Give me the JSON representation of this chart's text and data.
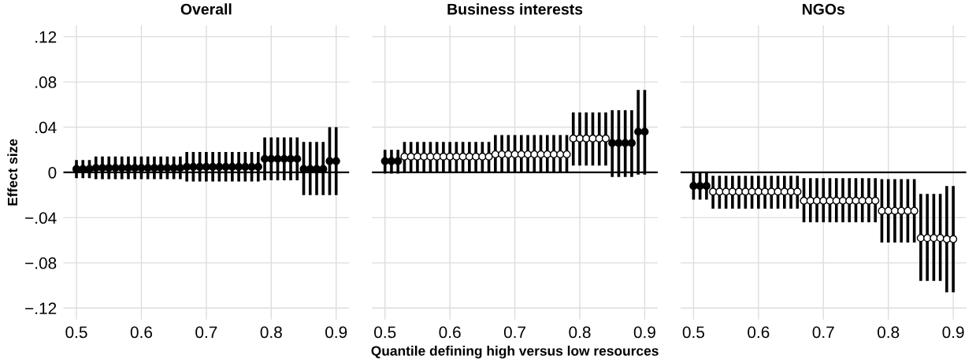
{
  "chart_data": [
    {
      "type": "scatter",
      "title": "Overall",
      "ylabel": "Effect size",
      "marker": "circle",
      "grid": true,
      "legend": false,
      "xlim": [
        0.48,
        0.92
      ],
      "xticks": [
        0.5,
        0.6,
        0.7,
        0.8,
        0.9
      ],
      "ylim": [
        -0.13,
        0.13
      ],
      "yticks": [
        {
          "value": -0.12,
          "label": "−.12"
        },
        {
          "value": -0.08,
          "label": "−.08"
        },
        {
          "value": -0.04,
          "label": "−.04"
        },
        0,
        {
          "value": 0.04,
          "label": ".04"
        },
        {
          "value": 0.08,
          "label": ".08"
        },
        {
          "value": 0.12,
          "label": ".12"
        }
      ],
      "ref_lines": [
        {
          "axis": "y",
          "value": 0,
          "color": "#000000"
        }
      ],
      "series": [
        {
          "color": "#000000",
          "x": [
            0.5,
            0.51,
            0.52,
            0.53,
            0.54,
            0.55,
            0.56,
            0.57,
            0.58,
            0.59,
            0.6,
            0.61,
            0.62,
            0.63,
            0.64,
            0.65,
            0.66,
            0.67,
            0.68,
            0.69,
            0.7,
            0.71,
            0.72,
            0.73,
            0.74,
            0.75,
            0.76,
            0.77,
            0.78,
            0.79,
            0.8,
            0.81,
            0.82,
            0.83,
            0.84,
            0.85,
            0.86,
            0.87,
            0.88,
            0.89,
            0.9
          ],
          "values": [
            0.003,
            0.003,
            0.003,
            0.004,
            0.004,
            0.004,
            0.004,
            0.004,
            0.004,
            0.004,
            0.004,
            0.004,
            0.004,
            0.004,
            0.004,
            0.004,
            0.004,
            0.005,
            0.005,
            0.005,
            0.005,
            0.005,
            0.005,
            0.005,
            0.005,
            0.005,
            0.005,
            0.005,
            0.005,
            0.012,
            0.012,
            0.012,
            0.012,
            0.012,
            0.012,
            0.003,
            0.003,
            0.003,
            0.003,
            0.01,
            0.01
          ],
          "errors": [
            [
              -0.005,
              0.011
            ],
            [
              -0.005,
              0.011
            ],
            [
              -0.005,
              0.011
            ],
            [
              -0.006,
              0.014
            ],
            [
              -0.006,
              0.014
            ],
            [
              -0.006,
              0.014
            ],
            [
              -0.006,
              0.014
            ],
            [
              -0.006,
              0.014
            ],
            [
              -0.006,
              0.014
            ],
            [
              -0.006,
              0.014
            ],
            [
              -0.006,
              0.014
            ],
            [
              -0.006,
              0.014
            ],
            [
              -0.006,
              0.014
            ],
            [
              -0.006,
              0.014
            ],
            [
              -0.006,
              0.014
            ],
            [
              -0.006,
              0.014
            ],
            [
              -0.006,
              0.014
            ],
            [
              -0.008,
              0.018
            ],
            [
              -0.008,
              0.018
            ],
            [
              -0.008,
              0.018
            ],
            [
              -0.008,
              0.018
            ],
            [
              -0.008,
              0.018
            ],
            [
              -0.008,
              0.018
            ],
            [
              -0.008,
              0.018
            ],
            [
              -0.008,
              0.018
            ],
            [
              -0.008,
              0.018
            ],
            [
              -0.008,
              0.018
            ],
            [
              -0.008,
              0.018
            ],
            [
              -0.008,
              0.018
            ],
            [
              -0.007,
              0.031
            ],
            [
              -0.007,
              0.031
            ],
            [
              -0.007,
              0.031
            ],
            [
              -0.007,
              0.031
            ],
            [
              -0.007,
              0.031
            ],
            [
              -0.007,
              0.031
            ],
            [
              -0.02,
              0.027
            ],
            [
              -0.02,
              0.027
            ],
            [
              -0.02,
              0.027
            ],
            [
              -0.02,
              0.027
            ],
            [
              -0.02,
              0.04
            ],
            [
              -0.02,
              0.04
            ]
          ]
        }
      ]
    },
    {
      "type": "scatter",
      "title": "Business interests",
      "xlabel": "Quantile defining high versus low resources",
      "marker": "circle",
      "grid": true,
      "legend": false,
      "tick_labels": "x",
      "xlim": [
        0.48,
        0.92
      ],
      "xticks": [
        0.5,
        0.6,
        0.7,
        0.8,
        0.9
      ],
      "ylim": [
        -0.13,
        0.13
      ],
      "yticks": [
        {
          "value": -0.12,
          "label": null
        },
        {
          "value": -0.08,
          "label": null
        },
        {
          "value": -0.04,
          "label": null
        },
        {
          "value": 0,
          "label": null
        },
        {
          "value": 0.04,
          "label": null
        },
        {
          "value": 0.08,
          "label": null
        },
        {
          "value": 0.12,
          "label": null
        }
      ],
      "ref_lines": [
        {
          "axis": "y",
          "value": 0,
          "color": "#000000"
        }
      ],
      "series": [
        {
          "color": "#000000",
          "x": [
            0.5,
            0.51,
            0.52,
            0.85,
            0.86,
            0.87,
            0.88,
            0.89,
            0.9
          ],
          "values": [
            0.01,
            0.01,
            0.01,
            0.026,
            0.026,
            0.026,
            0.026,
            0.036,
            0.036
          ],
          "errors": [
            [
              -0.001,
              0.02
            ],
            [
              -0.001,
              0.02
            ],
            [
              -0.001,
              0.02
            ],
            [
              -0.004,
              0.055
            ],
            [
              -0.004,
              0.055
            ],
            [
              -0.004,
              0.055
            ],
            [
              -0.004,
              0.055
            ],
            [
              -0.002,
              0.073
            ],
            [
              -0.002,
              0.073
            ]
          ]
        },
        {
          "color": "#ffffff",
          "x": [
            0.53,
            0.54,
            0.55,
            0.56,
            0.57,
            0.58,
            0.59,
            0.6,
            0.61,
            0.62,
            0.63,
            0.64,
            0.65,
            0.66,
            0.67,
            0.68,
            0.69,
            0.7,
            0.71,
            0.72,
            0.73,
            0.74,
            0.75,
            0.76,
            0.77,
            0.78,
            0.79,
            0.8,
            0.81,
            0.82,
            0.83,
            0.84
          ],
          "values": [
            0.014,
            0.014,
            0.014,
            0.014,
            0.014,
            0.014,
            0.014,
            0.014,
            0.014,
            0.014,
            0.014,
            0.014,
            0.014,
            0.014,
            0.016,
            0.016,
            0.016,
            0.016,
            0.016,
            0.016,
            0.016,
            0.016,
            0.016,
            0.016,
            0.016,
            0.016,
            0.03,
            0.03,
            0.03,
            0.03,
            0.03,
            0.03
          ],
          "errors": [
            [
              0.0,
              0.027
            ],
            [
              0.0,
              0.027
            ],
            [
              0.0,
              0.027
            ],
            [
              0.0,
              0.027
            ],
            [
              0.0,
              0.027
            ],
            [
              0.0,
              0.027
            ],
            [
              0.0,
              0.027
            ],
            [
              0.0,
              0.027
            ],
            [
              0.0,
              0.027
            ],
            [
              0.0,
              0.027
            ],
            [
              0.0,
              0.027
            ],
            [
              0.0,
              0.027
            ],
            [
              0.0,
              0.027
            ],
            [
              0.0,
              0.027
            ],
            [
              0.0,
              0.033
            ],
            [
              0.0,
              0.033
            ],
            [
              0.0,
              0.033
            ],
            [
              0.0,
              0.033
            ],
            [
              0.0,
              0.033
            ],
            [
              0.0,
              0.033
            ],
            [
              0.0,
              0.033
            ],
            [
              0.0,
              0.033
            ],
            [
              0.0,
              0.033
            ],
            [
              0.0,
              0.033
            ],
            [
              0.0,
              0.033
            ],
            [
              0.0,
              0.033
            ],
            [
              0.006,
              0.053
            ],
            [
              0.006,
              0.053
            ],
            [
              0.006,
              0.053
            ],
            [
              0.006,
              0.053
            ],
            [
              0.006,
              0.053
            ],
            [
              0.006,
              0.053
            ]
          ]
        }
      ]
    },
    {
      "type": "scatter",
      "title": "NGOs",
      "marker": "circle",
      "grid": true,
      "legend": false,
      "tick_labels": "x",
      "xlim": [
        0.48,
        0.92
      ],
      "xticks": [
        0.5,
        0.6,
        0.7,
        0.8,
        0.9
      ],
      "ylim": [
        -0.13,
        0.13
      ],
      "yticks": [
        {
          "value": -0.12,
          "label": null
        },
        {
          "value": -0.08,
          "label": null
        },
        {
          "value": -0.04,
          "label": null
        },
        {
          "value": 0,
          "label": null
        },
        {
          "value": 0.04,
          "label": null
        },
        {
          "value": 0.08,
          "label": null
        },
        {
          "value": 0.12,
          "label": null
        }
      ],
      "ref_lines": [
        {
          "axis": "y",
          "value": 0,
          "color": "#000000"
        }
      ],
      "series": [
        {
          "color": "#000000",
          "x": [
            0.5,
            0.51,
            0.52
          ],
          "values": [
            -0.012,
            -0.012,
            -0.012
          ],
          "errors": [
            [
              -0.024,
              0.0
            ],
            [
              -0.024,
              0.0
            ],
            [
              -0.024,
              0.0
            ]
          ]
        },
        {
          "color": "#ffffff",
          "x": [
            0.53,
            0.54,
            0.55,
            0.56,
            0.57,
            0.58,
            0.59,
            0.6,
            0.61,
            0.62,
            0.63,
            0.64,
            0.65,
            0.66,
            0.67,
            0.68,
            0.69,
            0.7,
            0.71,
            0.72,
            0.73,
            0.74,
            0.75,
            0.76,
            0.77,
            0.78,
            0.79,
            0.8,
            0.81,
            0.82,
            0.83,
            0.84,
            0.85,
            0.86,
            0.87,
            0.88,
            0.89,
            0.9
          ],
          "values": [
            -0.017,
            -0.017,
            -0.017,
            -0.017,
            -0.017,
            -0.017,
            -0.017,
            -0.017,
            -0.017,
            -0.017,
            -0.017,
            -0.017,
            -0.017,
            -0.017,
            -0.025,
            -0.025,
            -0.025,
            -0.025,
            -0.025,
            -0.025,
            -0.025,
            -0.025,
            -0.025,
            -0.025,
            -0.025,
            -0.025,
            -0.034,
            -0.034,
            -0.034,
            -0.034,
            -0.034,
            -0.034,
            -0.058,
            -0.058,
            -0.058,
            -0.058,
            -0.059,
            -0.059
          ],
          "errors": [
            [
              -0.032,
              -0.003
            ],
            [
              -0.032,
              -0.003
            ],
            [
              -0.032,
              -0.003
            ],
            [
              -0.032,
              -0.003
            ],
            [
              -0.032,
              -0.003
            ],
            [
              -0.032,
              -0.003
            ],
            [
              -0.032,
              -0.003
            ],
            [
              -0.032,
              -0.003
            ],
            [
              -0.032,
              -0.003
            ],
            [
              -0.032,
              -0.003
            ],
            [
              -0.032,
              -0.003
            ],
            [
              -0.032,
              -0.003
            ],
            [
              -0.032,
              -0.003
            ],
            [
              -0.032,
              -0.003
            ],
            [
              -0.044,
              -0.005
            ],
            [
              -0.044,
              -0.005
            ],
            [
              -0.044,
              -0.005
            ],
            [
              -0.044,
              -0.005
            ],
            [
              -0.044,
              -0.005
            ],
            [
              -0.044,
              -0.005
            ],
            [
              -0.044,
              -0.005
            ],
            [
              -0.044,
              -0.005
            ],
            [
              -0.044,
              -0.005
            ],
            [
              -0.044,
              -0.005
            ],
            [
              -0.044,
              -0.005
            ],
            [
              -0.044,
              -0.005
            ],
            [
              -0.062,
              -0.006
            ],
            [
              -0.062,
              -0.006
            ],
            [
              -0.062,
              -0.006
            ],
            [
              -0.062,
              -0.006
            ],
            [
              -0.062,
              -0.006
            ],
            [
              -0.062,
              -0.006
            ],
            [
              -0.096,
              -0.019
            ],
            [
              -0.096,
              -0.019
            ],
            [
              -0.096,
              -0.019
            ],
            [
              -0.096,
              -0.019
            ],
            [
              -0.106,
              -0.012
            ],
            [
              -0.106,
              -0.012
            ]
          ]
        }
      ]
    }
  ]
}
